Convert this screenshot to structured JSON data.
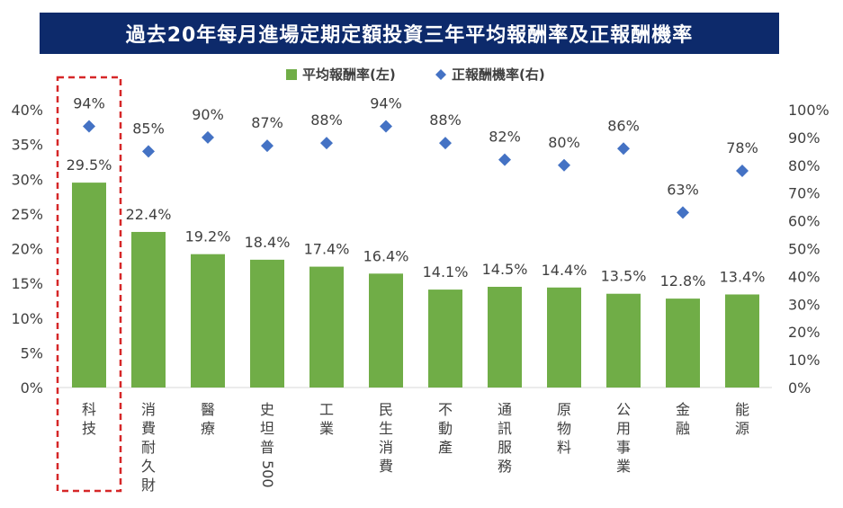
{
  "title": "過去20年每月進場定期定額投資三年平均報酬率及正報酬機率",
  "colors": {
    "bar": "#70ad47",
    "marker": "#4472c4",
    "title_bg": "#0d2a6b",
    "highlight": "#d62728"
  },
  "chart_data": {
    "type": "bar",
    "title": "過去20年每月進場定期定額投資三年平均報酬率及正報酬機率",
    "categories": [
      "科技",
      "消費耐久財",
      "醫療",
      "史坦普500",
      "工業",
      "民生消費",
      "不動產",
      "通訊服務",
      "原物料",
      "公用事業",
      "金融",
      "能源"
    ],
    "series": [
      {
        "name": "平均報酬率(左)",
        "type": "bar",
        "axis": "left",
        "values": [
          29.5,
          22.4,
          19.2,
          18.4,
          17.4,
          16.4,
          14.1,
          14.5,
          14.4,
          13.5,
          12.8,
          13.4
        ],
        "labels": [
          "29.5%",
          "22.4%",
          "19.2%",
          "18.4%",
          "17.4%",
          "16.4%",
          "14.1%",
          "14.5%",
          "14.4%",
          "13.5%",
          "12.8%",
          "13.4%"
        ]
      },
      {
        "name": "正報酬機率(右)",
        "type": "scatter",
        "axis": "right",
        "values": [
          94,
          85,
          90,
          87,
          88,
          94,
          88,
          82,
          80,
          86,
          63,
          78
        ],
        "labels": [
          "94%",
          "85%",
          "90%",
          "87%",
          "88%",
          "94%",
          "88%",
          "82%",
          "80%",
          "86%",
          "63%",
          "78%"
        ]
      }
    ],
    "y_left": {
      "min": 0,
      "max": 40,
      "ticks": [
        0,
        5,
        10,
        15,
        20,
        25,
        30,
        35,
        40
      ],
      "tick_labels": [
        "0%",
        "5%",
        "10%",
        "15%",
        "20%",
        "25%",
        "30%",
        "35%",
        "40%"
      ]
    },
    "y_right": {
      "min": 0,
      "max": 100,
      "ticks": [
        0,
        10,
        20,
        30,
        40,
        50,
        60,
        70,
        80,
        90,
        100
      ],
      "tick_labels": [
        "0%",
        "10%",
        "20%",
        "30%",
        "40%",
        "50%",
        "60%",
        "70%",
        "80%",
        "90%",
        "100%"
      ]
    },
    "legend": {
      "position": "top",
      "items": [
        "平均報酬率(左)",
        "正報酬機率(右)"
      ]
    },
    "highlight_category": "科技",
    "grid": false
  }
}
